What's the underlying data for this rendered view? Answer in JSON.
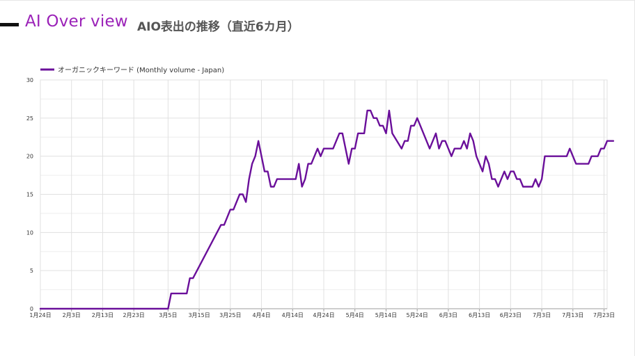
{
  "header": {
    "title": "AI Over view",
    "subtitle": "AIO表出の推移（直近6カ月）"
  },
  "colors": {
    "title": "#9b22b8",
    "series": "#6a0f9a",
    "grid": "#e0e0e0"
  },
  "chart_data": {
    "type": "line",
    "legend_position": "top-left",
    "grid": true,
    "ylim": [
      0,
      30
    ],
    "yticks": [
      0,
      5,
      10,
      15,
      20,
      25,
      30
    ],
    "xlim": [
      "2024-01-24",
      "2024-07-24"
    ],
    "xticks": [
      {
        "date": "2024-01-24",
        "label": "1月24日"
      },
      {
        "date": "2024-02-03",
        "label": "2月3日"
      },
      {
        "date": "2024-02-13",
        "label": "2月13日"
      },
      {
        "date": "2024-02-23",
        "label": "2月23日"
      },
      {
        "date": "2024-03-05",
        "label": "3月5日"
      },
      {
        "date": "2024-03-15",
        "label": "3月15日"
      },
      {
        "date": "2024-03-25",
        "label": "3月25日"
      },
      {
        "date": "2024-04-04",
        "label": "4月4日"
      },
      {
        "date": "2024-04-14",
        "label": "4月14日"
      },
      {
        "date": "2024-04-24",
        "label": "4月24日"
      },
      {
        "date": "2024-05-04",
        "label": "5月4日"
      },
      {
        "date": "2024-05-14",
        "label": "5月14日"
      },
      {
        "date": "2024-05-24",
        "label": "5月24日"
      },
      {
        "date": "2024-06-03",
        "label": "6月3日"
      },
      {
        "date": "2024-06-13",
        "label": "6月13日"
      },
      {
        "date": "2024-06-23",
        "label": "6月23日"
      },
      {
        "date": "2024-07-03",
        "label": "7月3日"
      },
      {
        "date": "2024-07-13",
        "label": "7月13日"
      },
      {
        "date": "2024-07-23",
        "label": "7月23日"
      }
    ],
    "series": [
      {
        "name": "オーガニックキーワード (Monthly volume - Japan)",
        "points": [
          [
            "2024-01-24",
            0
          ],
          [
            "2024-03-05",
            0
          ],
          [
            "2024-03-06",
            2
          ],
          [
            "2024-03-11",
            2
          ],
          [
            "2024-03-12",
            4
          ],
          [
            "2024-03-13",
            4
          ],
          [
            "2024-03-22",
            11
          ],
          [
            "2024-03-23",
            11
          ],
          [
            "2024-03-25",
            13
          ],
          [
            "2024-03-26",
            13
          ],
          [
            "2024-03-28",
            15
          ],
          [
            "2024-03-29",
            15
          ],
          [
            "2024-03-30",
            14
          ],
          [
            "2024-03-31",
            17
          ],
          [
            "2024-04-01",
            19
          ],
          [
            "2024-04-02",
            20
          ],
          [
            "2024-04-03",
            22
          ],
          [
            "2024-04-05",
            18
          ],
          [
            "2024-04-06",
            18
          ],
          [
            "2024-04-07",
            16
          ],
          [
            "2024-04-08",
            16
          ],
          [
            "2024-04-09",
            17
          ],
          [
            "2024-04-15",
            17
          ],
          [
            "2024-04-16",
            19
          ],
          [
            "2024-04-17",
            16
          ],
          [
            "2024-04-18",
            17
          ],
          [
            "2024-04-19",
            19
          ],
          [
            "2024-04-20",
            19
          ],
          [
            "2024-04-22",
            21
          ],
          [
            "2024-04-23",
            20
          ],
          [
            "2024-04-24",
            21
          ],
          [
            "2024-04-27",
            21
          ],
          [
            "2024-04-29",
            23
          ],
          [
            "2024-04-30",
            23
          ],
          [
            "2024-05-02",
            19
          ],
          [
            "2024-05-03",
            21
          ],
          [
            "2024-05-04",
            21
          ],
          [
            "2024-05-05",
            23
          ],
          [
            "2024-05-07",
            23
          ],
          [
            "2024-05-08",
            26
          ],
          [
            "2024-05-09",
            26
          ],
          [
            "2024-05-10",
            25
          ],
          [
            "2024-05-11",
            25
          ],
          [
            "2024-05-12",
            24
          ],
          [
            "2024-05-13",
            24
          ],
          [
            "2024-05-14",
            23
          ],
          [
            "2024-05-15",
            26
          ],
          [
            "2024-05-16",
            23
          ],
          [
            "2024-05-19",
            21
          ],
          [
            "2024-05-20",
            22
          ],
          [
            "2024-05-21",
            22
          ],
          [
            "2024-05-22",
            24
          ],
          [
            "2024-05-23",
            24
          ],
          [
            "2024-05-24",
            25
          ],
          [
            "2024-05-28",
            21
          ],
          [
            "2024-05-30",
            23
          ],
          [
            "2024-05-31",
            21
          ],
          [
            "2024-06-01",
            22
          ],
          [
            "2024-06-02",
            22
          ],
          [
            "2024-06-04",
            20
          ],
          [
            "2024-06-05",
            21
          ],
          [
            "2024-06-07",
            21
          ],
          [
            "2024-06-08",
            22
          ],
          [
            "2024-06-09",
            21
          ],
          [
            "2024-06-10",
            23
          ],
          [
            "2024-06-11",
            22
          ],
          [
            "2024-06-12",
            20
          ],
          [
            "2024-06-14",
            18
          ],
          [
            "2024-06-15",
            20
          ],
          [
            "2024-06-16",
            19
          ],
          [
            "2024-06-17",
            17
          ],
          [
            "2024-06-18",
            17
          ],
          [
            "2024-06-19",
            16
          ],
          [
            "2024-06-20",
            17
          ],
          [
            "2024-06-21",
            18
          ],
          [
            "2024-06-22",
            17
          ],
          [
            "2024-06-23",
            18
          ],
          [
            "2024-06-24",
            18
          ],
          [
            "2024-06-25",
            17
          ],
          [
            "2024-06-26",
            17
          ],
          [
            "2024-06-27",
            16
          ],
          [
            "2024-06-30",
            16
          ],
          [
            "2024-07-01",
            17
          ],
          [
            "2024-07-02",
            16
          ],
          [
            "2024-07-03",
            17
          ],
          [
            "2024-07-04",
            20
          ],
          [
            "2024-07-11",
            20
          ],
          [
            "2024-07-12",
            21
          ],
          [
            "2024-07-14",
            19
          ],
          [
            "2024-07-18",
            19
          ],
          [
            "2024-07-19",
            20
          ],
          [
            "2024-07-21",
            20
          ],
          [
            "2024-07-22",
            21
          ],
          [
            "2024-07-23",
            21
          ],
          [
            "2024-07-24",
            22
          ],
          [
            "2024-07-26",
            22
          ]
        ]
      }
    ]
  }
}
